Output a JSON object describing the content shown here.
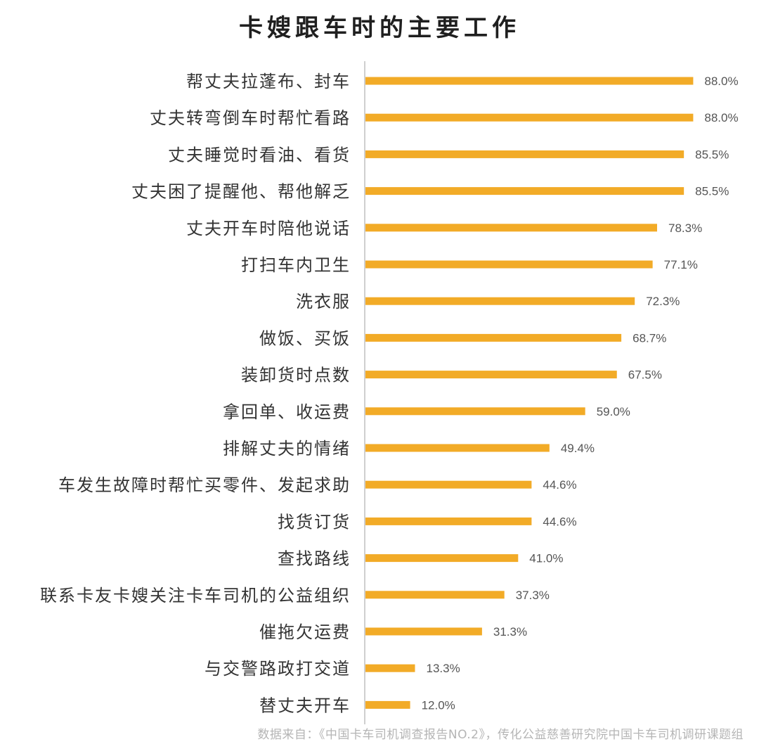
{
  "chart_data": {
    "type": "bar",
    "orientation": "horizontal",
    "title": "卡嫂跟车时的主要工作",
    "categories": [
      "帮丈夫拉蓬布、封车",
      "丈夫转弯倒车时帮忙看路",
      "丈夫睡觉时看油、看货",
      "丈夫困了提醒他、帮他解乏",
      "丈夫开车时陪他说话",
      "打扫车内卫生",
      "洗衣服",
      "做饭、买饭",
      "装卸货时点数",
      "拿回单、收运费",
      "排解丈夫的情绪",
      "车发生故障时帮忙买零件、发起求助",
      "找货订货",
      "查找路线",
      "联系卡友卡嫂关注卡车司机的公益组织",
      "催拖欠运费",
      "与交警路政打交道",
      "替丈夫开车"
    ],
    "values": [
      88.0,
      88.0,
      85.5,
      85.5,
      78.3,
      77.1,
      72.3,
      68.7,
      67.5,
      59.0,
      49.4,
      44.6,
      44.6,
      41.0,
      37.3,
      31.3,
      13.3,
      12.0
    ],
    "value_labels": [
      "88.0%",
      "88.0%",
      "85.5%",
      "85.5%",
      "78.3%",
      "77.1%",
      "72.3%",
      "68.7%",
      "67.5%",
      "59.0%",
      "49.4%",
      "44.6%",
      "44.6%",
      "41.0%",
      "37.3%",
      "31.3%",
      "13.3%",
      "12.0%"
    ],
    "unit": "%",
    "xlim": [
      0,
      100
    ],
    "grid": false,
    "legend": "none",
    "bar_color": "#F2AB27",
    "axis_color": "#BFBFBF"
  },
  "source_note": "数据来自：《中国卡车司机调查报告NO.2》，传化公益慈善研究院中国卡车司机调研课题组"
}
